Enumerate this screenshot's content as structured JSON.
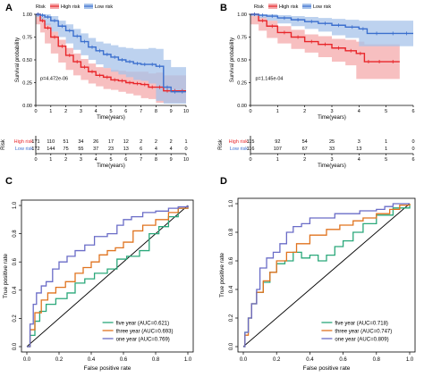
{
  "panel_labels": [
    "A",
    "B",
    "C",
    "D"
  ],
  "colors": {
    "high": "#e8262a",
    "low": "#3b6fce",
    "high_band": "#f4a9ab",
    "low_band": "#a7c3ea",
    "five": "#2aa87a",
    "three": "#e0731f",
    "one": "#6a6cc7",
    "diag": "#000000"
  },
  "chart_data": [
    {
      "panel": "A",
      "type": "line",
      "subtype": "kaplan-meier",
      "xlabel": "Time(years)",
      "ylabel": "Survival probability",
      "xlim": [
        0,
        10
      ],
      "ylim": [
        0,
        1
      ],
      "xticks": [
        0,
        1,
        2,
        3,
        4,
        5,
        6,
        7,
        8,
        9,
        10
      ],
      "yticks": [
        "0.00",
        "0.25",
        "0.50",
        "0.75",
        "1.00"
      ],
      "legend": {
        "title": "Risk",
        "items": [
          "High risk",
          "Low risk"
        ],
        "placement": "top"
      },
      "pvalue": "p=4.472e-06",
      "series": [
        {
          "name": "High risk",
          "color_key": "high",
          "x": [
            0,
            0.3,
            0.6,
            1.0,
            1.5,
            2.0,
            2.5,
            3.0,
            3.5,
            4.0,
            4.5,
            5.0,
            5.5,
            6.0,
            6.5,
            7.0,
            7.5,
            8.0,
            8.5,
            9.0,
            9.5,
            10.0
          ],
          "y": [
            1.0,
            0.93,
            0.85,
            0.75,
            0.65,
            0.55,
            0.48,
            0.42,
            0.37,
            0.33,
            0.31,
            0.28,
            0.27,
            0.25,
            0.24,
            0.23,
            0.2,
            0.2,
            0.16,
            0.16,
            0.16,
            0.16
          ],
          "lower": [
            1.0,
            0.89,
            0.8,
            0.68,
            0.57,
            0.47,
            0.39,
            0.33,
            0.28,
            0.24,
            0.21,
            0.18,
            0.17,
            0.15,
            0.13,
            0.11,
            0.08,
            0.07,
            0.03,
            0.03,
            0.03,
            0.03
          ],
          "upper": [
            1.0,
            0.97,
            0.9,
            0.81,
            0.72,
            0.63,
            0.57,
            0.51,
            0.46,
            0.42,
            0.41,
            0.39,
            0.38,
            0.37,
            0.37,
            0.37,
            0.35,
            0.36,
            0.33,
            0.33,
            0.33,
            0.33
          ]
        },
        {
          "name": "Low risk",
          "color_key": "low",
          "x": [
            0,
            0.3,
            0.6,
            1.0,
            1.5,
            2.0,
            2.5,
            3.0,
            3.5,
            4.0,
            4.5,
            5.0,
            5.5,
            6.0,
            6.5,
            7.0,
            7.5,
            8.0,
            8.5,
            9.0,
            9.5,
            10.0
          ],
          "y": [
            1.0,
            0.99,
            0.97,
            0.93,
            0.87,
            0.82,
            0.76,
            0.7,
            0.64,
            0.6,
            0.56,
            0.53,
            0.5,
            0.48,
            0.46,
            0.45,
            0.45,
            0.43,
            0.2,
            0.15,
            0.15,
            0.15
          ],
          "lower": [
            1.0,
            0.97,
            0.94,
            0.88,
            0.81,
            0.75,
            0.68,
            0.61,
            0.55,
            0.5,
            0.45,
            0.41,
            0.37,
            0.34,
            0.31,
            0.28,
            0.27,
            0.24,
            0.05,
            0.02,
            0.02,
            0.02
          ],
          "upper": [
            1.0,
            1.0,
            1.0,
            0.98,
            0.93,
            0.89,
            0.84,
            0.79,
            0.74,
            0.7,
            0.68,
            0.66,
            0.64,
            0.63,
            0.62,
            0.62,
            0.63,
            0.62,
            0.5,
            0.42,
            0.42,
            0.42
          ]
        }
      ],
      "risk_table": {
        "rows": [
          {
            "label": "High risk",
            "color_key": "high",
            "values": [
              171,
              110,
              51,
              34,
              26,
              17,
              12,
              2,
              2,
              2,
              1
            ]
          },
          {
            "label": "Low risk",
            "color_key": "low",
            "values": [
              172,
              144,
              75,
              55,
              37,
              23,
              13,
              6,
              4,
              4,
              0
            ]
          }
        ],
        "axis_title": "Risk",
        "xlabel": "Time(years)"
      }
    },
    {
      "panel": "B",
      "type": "line",
      "subtype": "kaplan-meier",
      "xlabel": "Time(years)",
      "ylabel": "Survival probability",
      "xlim": [
        0,
        6
      ],
      "ylim": [
        0,
        1
      ],
      "xticks": [
        0,
        1,
        2,
        3,
        4,
        5,
        6
      ],
      "yticks": [
        "0.00",
        "0.25",
        "0.50",
        "0.75",
        "1.00"
      ],
      "legend": {
        "title": "Risk",
        "items": [
          "High risk",
          "Low risk"
        ],
        "placement": "top"
      },
      "pvalue": "p=1.145e-04",
      "series": [
        {
          "name": "High risk",
          "color_key": "high",
          "x": [
            0,
            0.3,
            0.6,
            1.0,
            1.5,
            2.0,
            2.5,
            3.0,
            3.5,
            3.9,
            4.2,
            4.5,
            5.0,
            5.5
          ],
          "y": [
            1.0,
            0.93,
            0.87,
            0.8,
            0.75,
            0.7,
            0.67,
            0.63,
            0.6,
            0.57,
            0.48,
            0.48,
            0.48,
            0.48
          ],
          "lower": [
            1.0,
            0.89,
            0.82,
            0.74,
            0.68,
            0.62,
            0.58,
            0.53,
            0.48,
            0.44,
            0.29,
            0.29,
            0.29,
            0.29
          ],
          "upper": [
            1.0,
            0.97,
            0.93,
            0.87,
            0.83,
            0.78,
            0.76,
            0.73,
            0.72,
            0.7,
            0.67,
            0.67,
            0.67,
            0.67
          ]
        },
        {
          "name": "Low risk",
          "color_key": "low",
          "x": [
            0,
            0.3,
            0.6,
            1.0,
            1.5,
            2.0,
            2.5,
            3.0,
            3.5,
            4.0,
            4.3,
            5.0,
            5.5,
            6.0
          ],
          "y": [
            1.0,
            0.99,
            0.98,
            0.96,
            0.94,
            0.92,
            0.9,
            0.88,
            0.86,
            0.84,
            0.79,
            0.79,
            0.79,
            0.79
          ],
          "lower": [
            1.0,
            0.98,
            0.96,
            0.93,
            0.9,
            0.87,
            0.84,
            0.81,
            0.77,
            0.74,
            0.65,
            0.65,
            0.65,
            0.65
          ],
          "upper": [
            1.0,
            1.0,
            1.0,
            0.99,
            0.98,
            0.97,
            0.96,
            0.95,
            0.94,
            0.93,
            0.93,
            0.93,
            0.93,
            0.93
          ]
        }
      ],
      "risk_table": {
        "rows": [
          {
            "label": "High risk",
            "color_key": "high",
            "values": [
              115,
              92,
              54,
              25,
              3,
              1,
              0
            ]
          },
          {
            "label": "Low risk",
            "color_key": "low",
            "values": [
              116,
              107,
              67,
              33,
              13,
              1,
              0
            ]
          }
        ],
        "axis_title": "Risk",
        "xlabel": "Time(years)"
      }
    },
    {
      "panel": "C",
      "type": "line",
      "subtype": "roc",
      "xlabel": "False positive rate",
      "ylabel": "True positive rate",
      "xlim": [
        0,
        1
      ],
      "ylim": [
        0,
        1
      ],
      "xticks": [
        "0.0",
        "0.2",
        "0.4",
        "0.6",
        "0.8",
        "1.0"
      ],
      "yticks": [
        "0.0",
        "0.2",
        "0.4",
        "0.6",
        "0.8",
        "1.0"
      ],
      "legend": {
        "placement": "bottom-right"
      },
      "series": [
        {
          "name": "five year (AUC=0.621)",
          "color_key": "five",
          "x": [
            0,
            0.02,
            0.05,
            0.08,
            0.12,
            0.18,
            0.25,
            0.3,
            0.36,
            0.42,
            0.5,
            0.56,
            0.62,
            0.7,
            0.76,
            0.82,
            0.88,
            0.94,
            1.0
          ],
          "y": [
            0,
            0.08,
            0.18,
            0.25,
            0.3,
            0.34,
            0.38,
            0.45,
            0.48,
            0.52,
            0.55,
            0.62,
            0.64,
            0.68,
            0.8,
            0.85,
            0.92,
            0.98,
            1.0
          ]
        },
        {
          "name": "three year (AUC=0.693)",
          "color_key": "three",
          "x": [
            0,
            0.02,
            0.05,
            0.09,
            0.13,
            0.18,
            0.24,
            0.3,
            0.35,
            0.4,
            0.45,
            0.5,
            0.55,
            0.6,
            0.66,
            0.72,
            0.8,
            0.88,
            0.94,
            1.0
          ],
          "y": [
            0,
            0.12,
            0.24,
            0.33,
            0.38,
            0.42,
            0.46,
            0.52,
            0.56,
            0.6,
            0.65,
            0.68,
            0.7,
            0.74,
            0.82,
            0.86,
            0.9,
            0.95,
            0.98,
            1.0
          ]
        },
        {
          "name": "one year (AUC=0.769)",
          "color_key": "one",
          "x": [
            0,
            0.02,
            0.04,
            0.06,
            0.09,
            0.12,
            0.16,
            0.2,
            0.25,
            0.3,
            0.36,
            0.42,
            0.5,
            0.56,
            0.6,
            0.65,
            0.72,
            0.8,
            0.88,
            0.94,
            1.0
          ],
          "y": [
            0,
            0.16,
            0.3,
            0.38,
            0.43,
            0.46,
            0.55,
            0.6,
            0.64,
            0.68,
            0.72,
            0.78,
            0.8,
            0.86,
            0.9,
            0.92,
            0.95,
            0.96,
            0.98,
            0.99,
            1.0
          ]
        }
      ]
    },
    {
      "panel": "D",
      "type": "line",
      "subtype": "roc",
      "xlabel": "False positive rate",
      "ylabel": "True positive rate",
      "xlim": [
        0,
        1
      ],
      "ylim": [
        0,
        1
      ],
      "xticks": [
        "0.0",
        "0.2",
        "0.4",
        "0.6",
        "0.8",
        "1.0"
      ],
      "yticks": [
        "0.0",
        "0.2",
        "0.4",
        "0.6",
        "0.8",
        "1.0"
      ],
      "legend": {
        "placement": "bottom-right"
      },
      "series": [
        {
          "name": "five year (AUC=0.718)",
          "color_key": "five",
          "x": [
            0,
            0.01,
            0.03,
            0.05,
            0.08,
            0.12,
            0.16,
            0.2,
            0.25,
            0.3,
            0.35,
            0.4,
            0.45,
            0.5,
            0.55,
            0.6,
            0.66,
            0.72,
            0.8,
            0.9,
            1.0
          ],
          "y": [
            0,
            0.1,
            0.2,
            0.3,
            0.38,
            0.45,
            0.52,
            0.58,
            0.6,
            0.66,
            0.62,
            0.64,
            0.6,
            0.64,
            0.7,
            0.74,
            0.8,
            0.86,
            0.92,
            0.97,
            1.0
          ]
        },
        {
          "name": "three year (AUC=0.747)",
          "color_key": "three",
          "x": [
            0,
            0.01,
            0.03,
            0.05,
            0.08,
            0.12,
            0.16,
            0.2,
            0.26,
            0.32,
            0.4,
            0.5,
            0.58,
            0.66,
            0.72,
            0.8,
            0.88,
            0.94,
            1.0
          ],
          "y": [
            0,
            0.08,
            0.2,
            0.3,
            0.38,
            0.46,
            0.52,
            0.6,
            0.66,
            0.72,
            0.78,
            0.82,
            0.85,
            0.88,
            0.9,
            0.93,
            0.96,
            0.99,
            1.0
          ]
        },
        {
          "name": "one year (AUC=0.809)",
          "color_key": "one",
          "x": [
            0,
            0.01,
            0.03,
            0.05,
            0.08,
            0.1,
            0.14,
            0.18,
            0.22,
            0.26,
            0.3,
            0.35,
            0.4,
            0.5,
            0.55,
            0.6,
            0.7,
            0.8,
            0.85,
            0.9,
            1.0
          ],
          "y": [
            0,
            0.1,
            0.2,
            0.3,
            0.4,
            0.55,
            0.62,
            0.66,
            0.72,
            0.8,
            0.84,
            0.86,
            0.9,
            0.9,
            0.93,
            0.93,
            0.95,
            0.96,
            0.98,
            1.0,
            1.0
          ]
        }
      ]
    }
  ]
}
